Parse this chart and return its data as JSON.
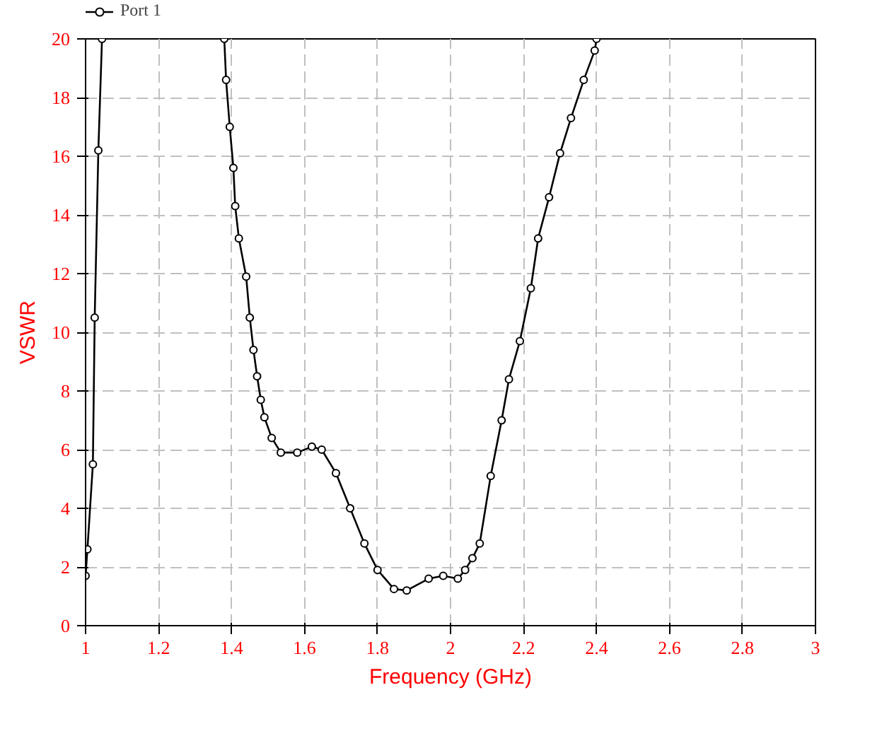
{
  "chart_data": {
    "type": "line",
    "xlabel": "Frequency (GHz)",
    "ylabel": "VSWR",
    "x": [
      1.0,
      1.005,
      1.02,
      1.025,
      1.035,
      1.045,
      1.2,
      1.38,
      1.385,
      1.395,
      1.405,
      1.41,
      1.42,
      1.44,
      1.45,
      1.46,
      1.47,
      1.48,
      1.49,
      1.51,
      1.535,
      1.58,
      1.62,
      1.647,
      1.686,
      1.725,
      1.764,
      1.8,
      1.845,
      1.88,
      1.94,
      1.98,
      2.02,
      2.04,
      2.06,
      2.08,
      2.11,
      2.14,
      2.16,
      2.19,
      2.22,
      2.24,
      2.27,
      2.3,
      2.33,
      2.365,
      2.395,
      2.4
    ],
    "series": [
      {
        "name": "Port 1",
        "color": "#000000",
        "values": [
          1.7,
          2.6,
          5.5,
          10.5,
          16.2,
          20,
          null,
          20,
          18.6,
          17.0,
          15.6,
          14.3,
          13.2,
          11.9,
          10.5,
          9.4,
          8.5,
          7.7,
          7.1,
          6.4,
          5.9,
          5.9,
          6.1,
          6.0,
          5.2,
          4.0,
          2.8,
          1.9,
          1.25,
          1.2,
          1.6,
          1.7,
          1.6,
          1.9,
          2.3,
          2.8,
          5.1,
          7.0,
          8.4,
          9.7,
          11.5,
          13.2,
          14.6,
          16.1,
          17.3,
          18.6,
          19.6,
          20
        ]
      }
    ],
    "xlim": [
      1,
      3
    ],
    "xticks": [
      {
        "value": 1,
        "label": "1"
      },
      1.2,
      1.4,
      1.6,
      1.8,
      {
        "value": 2,
        "label": "2"
      },
      2.2,
      2.4,
      2.6,
      2.8,
      {
        "value": 3,
        "label": "3"
      }
    ],
    "ylim": [
      0,
      20
    ],
    "yticks": [
      0,
      2,
      4,
      6,
      8,
      10,
      12,
      14,
      16,
      18,
      20
    ],
    "grid": true,
    "legend": "top left",
    "marker": "circle",
    "line_style": "solid"
  }
}
